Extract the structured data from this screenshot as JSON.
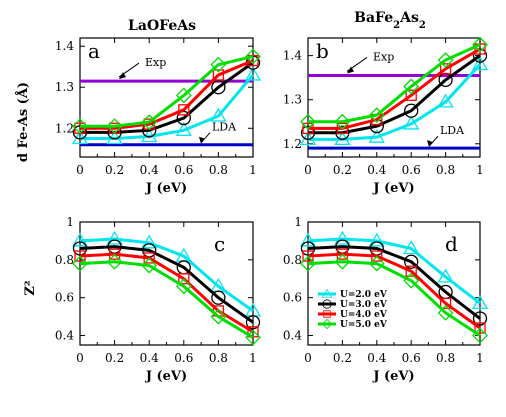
{
  "titles": {
    "left": "LaOFeAs",
    "right": "BaFe2As2"
  },
  "y_labels": {
    "top": "d Fe-As (Å)",
    "bottom": "Z²"
  },
  "x_label": "J (eV)",
  "panel_letters": [
    "a",
    "b",
    "c",
    "d"
  ],
  "annotations": {
    "exp": "Exp",
    "lda": "LDA"
  },
  "legend": [
    {
      "label": "U=2.0 eV"
    },
    {
      "label": "U=3.0 eV"
    },
    {
      "label": "U=4.0 eV"
    },
    {
      "label": "U=5.0 eV"
    }
  ],
  "colors": {
    "U2": "#00e5ee",
    "U3": "#000000",
    "U4": "#ff0000",
    "U5": "#00dd00",
    "exp_line": "#9400d3",
    "lda_line": "#0000cd"
  },
  "chart_data": [
    {
      "type": "line",
      "panel": "a",
      "title": "LaOFeAs",
      "xlabel": "J (eV)",
      "ylabel": "d Fe-As (Å)",
      "xlim": [
        0,
        1
      ],
      "ylim": [
        1.13,
        1.42
      ],
      "xticks": [
        0,
        0.2,
        0.4,
        0.6,
        0.8,
        1
      ],
      "yticks": [
        1.2,
        1.3,
        1.4
      ],
      "x": [
        0,
        0.2,
        0.4,
        0.6,
        0.8,
        1.0
      ],
      "series": [
        {
          "name": "U=2.0 eV",
          "marker": "triangle",
          "values": [
            1.175,
            1.175,
            1.18,
            1.195,
            1.23,
            1.33
          ]
        },
        {
          "name": "U=3.0 eV",
          "marker": "circle",
          "values": [
            1.19,
            1.19,
            1.195,
            1.225,
            1.3,
            1.36
          ]
        },
        {
          "name": "U=4.0 eV",
          "marker": "square",
          "values": [
            1.2,
            1.2,
            1.21,
            1.245,
            1.33,
            1.365
          ]
        },
        {
          "name": "U=5.0 eV",
          "marker": "diamond",
          "values": [
            1.205,
            1.205,
            1.215,
            1.28,
            1.355,
            1.375
          ]
        }
      ],
      "reference_lines": [
        {
          "name": "Exp",
          "y": 1.315
        },
        {
          "name": "LDA",
          "y": 1.16
        }
      ]
    },
    {
      "type": "line",
      "panel": "b",
      "title": "BaFe2As2",
      "xlabel": "J (eV)",
      "ylabel": "",
      "xlim": [
        0,
        1
      ],
      "ylim": [
        1.17,
        1.44
      ],
      "xticks": [
        0,
        0.2,
        0.4,
        0.6,
        0.8,
        1
      ],
      "yticks": [
        1.2,
        1.3,
        1.4
      ],
      "x": [
        0,
        0.2,
        0.4,
        0.6,
        0.8,
        1.0
      ],
      "series": [
        {
          "name": "U=2.0 eV",
          "marker": "triangle",
          "values": [
            1.21,
            1.21,
            1.215,
            1.245,
            1.295,
            1.38
          ]
        },
        {
          "name": "U=3.0 eV",
          "marker": "circle",
          "values": [
            1.225,
            1.225,
            1.24,
            1.275,
            1.345,
            1.4
          ]
        },
        {
          "name": "U=4.0 eV",
          "marker": "square",
          "values": [
            1.235,
            1.235,
            1.255,
            1.31,
            1.37,
            1.415
          ]
        },
        {
          "name": "U=5.0 eV",
          "marker": "diamond",
          "values": [
            1.25,
            1.25,
            1.265,
            1.33,
            1.39,
            1.425
          ]
        }
      ],
      "reference_lines": [
        {
          "name": "Exp",
          "y": 1.355
        },
        {
          "name": "LDA",
          "y": 1.19
        }
      ]
    },
    {
      "type": "line",
      "panel": "c",
      "title": "",
      "xlabel": "J (eV)",
      "ylabel": "Z²",
      "xlim": [
        0,
        1
      ],
      "ylim": [
        0.35,
        1.0
      ],
      "xticks": [
        0,
        0.2,
        0.4,
        0.6,
        0.8,
        1
      ],
      "yticks": [
        0.4,
        0.6,
        0.8,
        1
      ],
      "x": [
        0,
        0.2,
        0.4,
        0.6,
        0.8,
        1.0
      ],
      "series": [
        {
          "name": "U=2.0 eV",
          "marker": "triangle",
          "values": [
            0.9,
            0.91,
            0.89,
            0.82,
            0.66,
            0.53
          ]
        },
        {
          "name": "U=3.0 eV",
          "marker": "circle",
          "values": [
            0.86,
            0.87,
            0.85,
            0.76,
            0.6,
            0.47
          ]
        },
        {
          "name": "U=4.0 eV",
          "marker": "square",
          "values": [
            0.82,
            0.83,
            0.81,
            0.7,
            0.53,
            0.42
          ]
        },
        {
          "name": "U=5.0 eV",
          "marker": "diamond",
          "values": [
            0.78,
            0.79,
            0.77,
            0.66,
            0.5,
            0.39
          ]
        }
      ]
    },
    {
      "type": "line",
      "panel": "d",
      "title": "",
      "xlabel": "J (eV)",
      "ylabel": "",
      "xlim": [
        0,
        1
      ],
      "ylim": [
        0.35,
        1.0
      ],
      "xticks": [
        0,
        0.2,
        0.4,
        0.6,
        0.8,
        1
      ],
      "yticks": [
        0.4,
        0.6,
        0.8,
        1
      ],
      "x": [
        0,
        0.2,
        0.4,
        0.6,
        0.8,
        1.0
      ],
      "series": [
        {
          "name": "U=2.0 eV",
          "marker": "triangle",
          "values": [
            0.9,
            0.91,
            0.9,
            0.86,
            0.71,
            0.57
          ]
        },
        {
          "name": "U=3.0 eV",
          "marker": "circle",
          "values": [
            0.86,
            0.87,
            0.86,
            0.79,
            0.63,
            0.49
          ]
        },
        {
          "name": "U=4.0 eV",
          "marker": "square",
          "values": [
            0.82,
            0.83,
            0.82,
            0.74,
            0.57,
            0.44
          ]
        },
        {
          "name": "U=5.0 eV",
          "marker": "diamond",
          "values": [
            0.78,
            0.79,
            0.78,
            0.69,
            0.52,
            0.4
          ]
        }
      ]
    }
  ]
}
